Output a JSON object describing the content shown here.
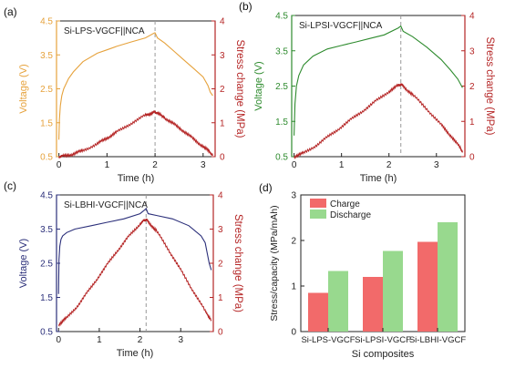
{
  "chart_data": [
    {
      "panel_label": "(a)",
      "type": "line",
      "annotation": "Si-LPS-VGCF||NCA",
      "xlabel": "Time (h)",
      "ylabel_left": "Voltage (V)",
      "ylabel_right": "Stress change (MPa)",
      "xlim": [
        -0.05,
        3.25
      ],
      "ylim_left": [
        0.5,
        4.5
      ],
      "ylim_right": [
        0,
        4
      ],
      "xticks": [
        "0",
        "1",
        "2",
        "3"
      ],
      "xtick_values": [
        0,
        1,
        2,
        3
      ],
      "yticks_left": [
        "0.5",
        "1.5",
        "2.5",
        "3.5",
        "4.5"
      ],
      "yticks_left_values": [
        0.5,
        1.5,
        2.5,
        3.5,
        4.5
      ],
      "yticks_right": [
        "0",
        "1",
        "2",
        "3",
        "4"
      ],
      "yticks_right_values": [
        0,
        1,
        2,
        3,
        4
      ],
      "dashed_x": 2.0,
      "colors": {
        "left": "#e6a23c",
        "right": "#b52626"
      },
      "voltage": {
        "x": [
          0,
          0.01,
          0.03,
          0.06,
          0.1,
          0.2,
          0.3,
          0.5,
          0.8,
          1.0,
          1.2,
          1.5,
          1.8,
          1.99,
          2.0,
          2.05,
          2.2,
          2.4,
          2.6,
          2.8,
          3.0,
          3.1,
          3.15,
          3.2
        ],
        "y": [
          1.0,
          1.6,
          2.0,
          2.3,
          2.5,
          2.8,
          3.0,
          3.3,
          3.55,
          3.65,
          3.75,
          3.88,
          4.0,
          4.15,
          4.15,
          4.0,
          3.85,
          3.6,
          3.35,
          3.1,
          2.85,
          2.6,
          2.4,
          2.3
        ]
      },
      "stress": {
        "x": [
          0,
          0.1,
          0.3,
          0.5,
          0.8,
          1.0,
          1.2,
          1.5,
          1.8,
          1.95,
          2.0,
          2.05,
          2.2,
          2.4,
          2.6,
          2.8,
          3.0,
          3.15,
          3.2
        ],
        "y": [
          0,
          0.02,
          0.08,
          0.18,
          0.38,
          0.55,
          0.72,
          0.98,
          1.22,
          1.3,
          1.32,
          1.28,
          1.15,
          0.95,
          0.75,
          0.52,
          0.3,
          0.12,
          0.05
        ]
      }
    },
    {
      "panel_label": "(b)",
      "type": "line",
      "annotation": "Si-LPSI-VGCF||NCA",
      "xlabel": "Time (h)",
      "ylabel_left": "Voltage (V)",
      "ylabel_right": "Stress change (MPa)",
      "xlim": [
        -0.05,
        3.6
      ],
      "ylim_left": [
        0.5,
        4.5
      ],
      "ylim_right": [
        0,
        4
      ],
      "xticks": [
        "0",
        "1",
        "2",
        "3"
      ],
      "xtick_values": [
        0,
        1,
        2,
        3
      ],
      "yticks_left": [
        "0.5",
        "1.5",
        "2.5",
        "3.5",
        "4.5"
      ],
      "yticks_left_values": [
        0.5,
        1.5,
        2.5,
        3.5,
        4.5
      ],
      "yticks_right": [
        "0",
        "1",
        "2",
        "3",
        "4"
      ],
      "yticks_right_values": [
        0,
        1,
        2,
        3,
        4
      ],
      "dashed_x": 2.25,
      "colors": {
        "left": "#2e8b2e",
        "right": "#b52626"
      },
      "voltage": {
        "x": [
          0,
          0.02,
          0.05,
          0.1,
          0.2,
          0.4,
          0.7,
          1.0,
          1.3,
          1.6,
          1.9,
          2.2,
          2.25,
          2.3,
          2.5,
          2.8,
          3.1,
          3.3,
          3.45,
          3.55
        ],
        "y": [
          1.1,
          2.0,
          2.5,
          2.8,
          3.1,
          3.35,
          3.55,
          3.65,
          3.75,
          3.85,
          3.95,
          4.15,
          4.2,
          4.05,
          3.9,
          3.6,
          3.25,
          2.95,
          2.7,
          2.45
        ]
      },
      "stress": {
        "x": [
          0,
          0.2,
          0.5,
          0.8,
          1.1,
          1.4,
          1.7,
          2.0,
          2.2,
          2.25,
          2.3,
          2.5,
          2.8,
          3.1,
          3.3,
          3.5,
          3.55
        ],
        "y": [
          0,
          0.1,
          0.35,
          0.65,
          0.95,
          1.25,
          1.55,
          1.85,
          2.02,
          2.05,
          2.0,
          1.75,
          1.35,
          0.9,
          0.6,
          0.25,
          0.15
        ]
      }
    },
    {
      "panel_label": "(c)",
      "type": "line",
      "annotation": "Si-LBHI-VGCF||NCA",
      "xlabel": "Time (h)",
      "ylabel_left": "Voltage (V)",
      "ylabel_right": "Stress change (MPa)",
      "xlim": [
        -0.05,
        3.8
      ],
      "ylim_left": [
        0.5,
        4.5
      ],
      "ylim_right": [
        0,
        4
      ],
      "xticks": [
        "0",
        "1",
        "2",
        "3"
      ],
      "xtick_values": [
        0,
        1,
        2,
        3
      ],
      "yticks_left": [
        "0.5",
        "1.5",
        "2.5",
        "3.5",
        "4.5"
      ],
      "yticks_left_values": [
        0.5,
        1.5,
        2.5,
        3.5,
        4.5
      ],
      "yticks_right": [
        "0",
        "1",
        "2",
        "3",
        "4"
      ],
      "yticks_right_values": [
        0,
        1,
        2,
        3,
        4
      ],
      "dashed_x": 2.15,
      "colors": {
        "left": "#2b2f7a",
        "right": "#b52626"
      },
      "voltage": {
        "x": [
          0,
          0.01,
          0.03,
          0.06,
          0.1,
          0.2,
          0.4,
          0.8,
          1.2,
          1.6,
          2.0,
          2.1,
          2.15,
          2.2,
          2.4,
          2.8,
          3.2,
          3.5,
          3.6,
          3.65,
          3.7,
          3.75
        ],
        "y": [
          1.6,
          2.6,
          3.0,
          3.2,
          3.3,
          3.4,
          3.5,
          3.6,
          3.7,
          3.8,
          3.95,
          4.05,
          4.1,
          3.95,
          3.9,
          3.8,
          3.6,
          3.3,
          3.1,
          2.8,
          2.5,
          2.3
        ]
      },
      "stress": {
        "x": [
          0,
          0.2,
          0.5,
          0.8,
          1.1,
          1.4,
          1.7,
          2.0,
          2.1,
          2.15,
          2.2,
          2.4,
          2.7,
          3.0,
          3.3,
          3.6,
          3.75
        ],
        "y": [
          0.2,
          0.4,
          0.8,
          1.3,
          1.8,
          2.3,
          2.75,
          3.15,
          3.25,
          3.28,
          3.22,
          2.95,
          2.4,
          1.8,
          1.2,
          0.6,
          0.35
        ]
      }
    },
    {
      "panel_label": "(d)",
      "type": "bar",
      "xlabel": "Si composites",
      "ylabel": "Stress/capacity (MPa/mAh)",
      "ylim": [
        0,
        3
      ],
      "yticks": [
        "0",
        "1",
        "2",
        "3"
      ],
      "ytick_values": [
        0,
        1,
        2,
        3
      ],
      "categories": [
        "Si-LPS-VGCF",
        "Si-LPSI-VGCF",
        "Si-LBHI-VGCF"
      ],
      "series": [
        {
          "name": "Charge",
          "values": [
            0.85,
            1.2,
            1.97
          ],
          "color": "#f26a6a"
        },
        {
          "name": "Discharge",
          "values": [
            1.33,
            1.77,
            2.4
          ],
          "color": "#98d98e"
        }
      ],
      "legend": "top-left"
    }
  ]
}
